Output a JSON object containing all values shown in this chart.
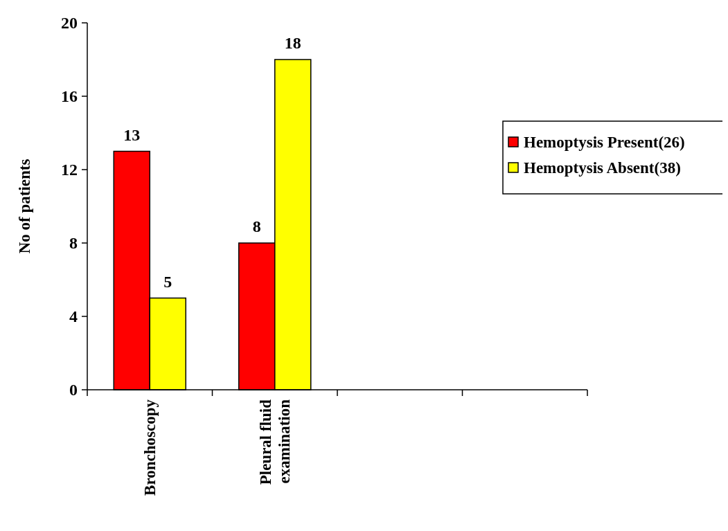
{
  "chart_data": {
    "type": "bar",
    "ylabel": "No of patients",
    "categories": [
      "Bronchoscopy",
      "Pleural fluid examination",
      null,
      null
    ],
    "series": [
      {
        "name": "Hemoptysis Present(26)",
        "color": "#ff0000",
        "values": [
          13,
          8,
          null,
          null
        ]
      },
      {
        "name": "Hemoptysis Absent(38)",
        "color": "#ffff00",
        "values": [
          5,
          18,
          null,
          null
        ]
      }
    ],
    "ylim": [
      0,
      20
    ],
    "yticks": [
      0,
      4,
      8,
      12,
      16,
      20
    ],
    "grid": false,
    "legend": "right",
    "data_labels": true
  }
}
